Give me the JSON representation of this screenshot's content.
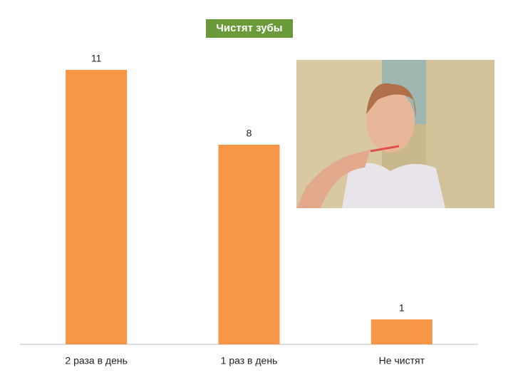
{
  "chart_data": {
    "type": "bar",
    "title": "Чистят зубы",
    "categories": [
      "2 раза в день",
      "1 раз в день",
      "Не чистят"
    ],
    "values": [
      11,
      8,
      1
    ],
    "color": "#f79646",
    "ylim": [
      0,
      11
    ]
  }
}
